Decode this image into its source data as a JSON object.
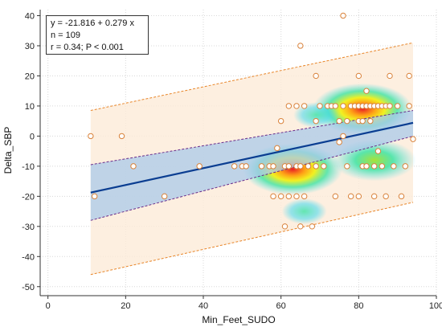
{
  "chart_data": {
    "type": "scatter",
    "xlabel": "Min_Feet_SUDO",
    "ylabel": "Delta_SBP",
    "xlim": [
      -2,
      100
    ],
    "ylim": [
      -53,
      42
    ],
    "xticks": [
      0,
      20,
      40,
      60,
      80,
      100
    ],
    "yticks": [
      -50,
      -40,
      -30,
      -20,
      -10,
      0,
      10,
      20,
      30,
      40
    ],
    "grid": true,
    "legend": "none",
    "regression": {
      "intercept": -21.816,
      "slope": 0.279,
      "x_range": [
        11,
        94
      ],
      "confidence_band": {
        "lower_at_x11": -28,
        "upper_at_x11": -9.5,
        "lower_at_x94": 0,
        "upper_at_x94": 8.5
      },
      "prediction_band": {
        "lower_at_x11": -46,
        "upper_at_x11": 8.5,
        "lower_at_x94": -22,
        "upper_at_x94": 31
      }
    },
    "stats": {
      "equation": "y = -21.816 + 0.279 x",
      "n": "n = 109",
      "r": "r = 0.34; P < 0.001"
    },
    "points": [
      [
        11,
        0
      ],
      [
        12,
        -20
      ],
      [
        19,
        0
      ],
      [
        22,
        -10
      ],
      [
        30,
        -20
      ],
      [
        39,
        -10
      ],
      [
        48,
        -10
      ],
      [
        50,
        -10
      ],
      [
        51,
        -10
      ],
      [
        55,
        -10
      ],
      [
        57,
        -10
      ],
      [
        58,
        -10
      ],
      [
        58,
        -20
      ],
      [
        59,
        -4
      ],
      [
        60,
        5
      ],
      [
        60,
        -20
      ],
      [
        61,
        -30
      ],
      [
        61,
        -10
      ],
      [
        62,
        10
      ],
      [
        62,
        -10
      ],
      [
        62,
        -20
      ],
      [
        64,
        10
      ],
      [
        64,
        -20
      ],
      [
        64,
        -10
      ],
      [
        65,
        30
      ],
      [
        65,
        -30
      ],
      [
        65,
        -10
      ],
      [
        66,
        10
      ],
      [
        66,
        -20
      ],
      [
        67,
        -10
      ],
      [
        68,
        -30
      ],
      [
        69,
        20
      ],
      [
        69,
        5
      ],
      [
        69,
        -10
      ],
      [
        70,
        10
      ],
      [
        71,
        -10
      ],
      [
        72,
        10
      ],
      [
        73,
        10
      ],
      [
        74,
        10
      ],
      [
        74,
        -20
      ],
      [
        75,
        5
      ],
      [
        75,
        -2
      ],
      [
        76,
        40
      ],
      [
        76,
        10
      ],
      [
        76,
        0
      ],
      [
        77,
        -10
      ],
      [
        77,
        5
      ],
      [
        78,
        10
      ],
      [
        78,
        -20
      ],
      [
        79,
        10
      ],
      [
        80,
        20
      ],
      [
        80,
        10
      ],
      [
        80,
        5
      ],
      [
        80,
        -20
      ],
      [
        81,
        10
      ],
      [
        81,
        5
      ],
      [
        81,
        -10
      ],
      [
        82,
        15
      ],
      [
        82,
        10
      ],
      [
        82,
        -10
      ],
      [
        83,
        10
      ],
      [
        83,
        5
      ],
      [
        84,
        10
      ],
      [
        84,
        -10
      ],
      [
        84,
        -20
      ],
      [
        85,
        10
      ],
      [
        85,
        -5
      ],
      [
        86,
        10
      ],
      [
        86,
        -10
      ],
      [
        87,
        10
      ],
      [
        87,
        -20
      ],
      [
        88,
        20
      ],
      [
        88,
        10
      ],
      [
        89,
        -10
      ],
      [
        90,
        10
      ],
      [
        91,
        -20
      ],
      [
        92,
        -10
      ],
      [
        93,
        20
      ],
      [
        93,
        10
      ],
      [
        94,
        -1
      ]
    ],
    "density_clusters": [
      {
        "x": 81,
        "y": 9,
        "level": "high"
      },
      {
        "x": 84,
        "y": -8,
        "level": "mid"
      },
      {
        "x": 63,
        "y": -11,
        "level": "high"
      },
      {
        "x": 69,
        "y": 7,
        "level": "low"
      },
      {
        "x": 66,
        "y": -25,
        "level": "low"
      }
    ],
    "colors": {
      "regression_line": "#0a3d91",
      "confidence_fill": "#a9c9ea",
      "confidence_edge": "#6a2d8a",
      "prediction_fill": "#fdebd8",
      "prediction_edge": "#e8862a",
      "point_fill": "#ffffff",
      "point_edge": "#d9823a",
      "grid": "#d8d8d8",
      "axis": "#333333"
    }
  }
}
